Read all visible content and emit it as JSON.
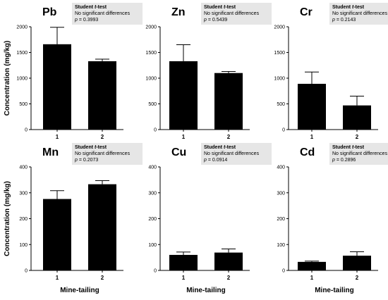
{
  "chart_data": [
    {
      "type": "bar",
      "element": "Pb",
      "test": {
        "title": "Student t-test",
        "result": "No significant differences",
        "p_label": "p",
        "p_value": "= 0.3993"
      },
      "categories": [
        "1",
        "2"
      ],
      "values": [
        1660,
        1330
      ],
      "errors": [
        330,
        40
      ],
      "ylim": [
        0,
        2000
      ],
      "yticks": [
        0,
        500,
        1000,
        1500,
        2000
      ],
      "ylabel": "Concentration (mg/kg)",
      "xlabel": ""
    },
    {
      "type": "bar",
      "element": "Zn",
      "test": {
        "title": "Student t-test",
        "result": "No significant differences",
        "p_label": "p",
        "p_value": "= 0.5439"
      },
      "categories": [
        "1",
        "2"
      ],
      "values": [
        1330,
        1100
      ],
      "errors": [
        320,
        30
      ],
      "ylim": [
        0,
        2000
      ],
      "yticks": [
        0,
        500,
        1000,
        1500,
        2000
      ],
      "ylabel": "",
      "xlabel": ""
    },
    {
      "type": "bar",
      "element": "Cr",
      "test": {
        "title": "Student t-test",
        "result": "No significant differences",
        "p_label": "p",
        "p_value": "= 0.2143"
      },
      "categories": [
        "1",
        "2"
      ],
      "values": [
        890,
        470
      ],
      "errors": [
        230,
        180
      ],
      "ylim": [
        0,
        2000
      ],
      "yticks": [
        0,
        500,
        1000,
        1500,
        2000
      ],
      "ylabel": "",
      "xlabel": ""
    },
    {
      "type": "bar",
      "element": "Mn",
      "test": {
        "title": "Student t-test",
        "result": "No significant differences",
        "p_label": "p",
        "p_value": "= 0.2073"
      },
      "categories": [
        "1",
        "2"
      ],
      "values": [
        276,
        333
      ],
      "errors": [
        32,
        14
      ],
      "ylim": [
        0,
        400
      ],
      "yticks": [
        0,
        100,
        200,
        300,
        400
      ],
      "ylabel": "Concentration (mg/kg)",
      "xlabel": "Mine-tailing"
    },
    {
      "type": "bar",
      "element": "Cu",
      "test": {
        "title": "Student t-test",
        "result": "No significant differences",
        "p_label": "p",
        "p_value": "= 0.0914"
      },
      "categories": [
        "1",
        "2"
      ],
      "values": [
        60,
        69
      ],
      "errors": [
        11,
        14
      ],
      "ylim": [
        0,
        400
      ],
      "yticks": [
        0,
        100,
        200,
        300,
        400
      ],
      "ylabel": "",
      "xlabel": "Mine-tailing"
    },
    {
      "type": "bar",
      "element": "Cd",
      "test": {
        "title": "Student t-test",
        "result": "No significant differences",
        "p_label": "p",
        "p_value": "= 0.2896"
      },
      "categories": [
        "1",
        "2"
      ],
      "values": [
        33,
        57
      ],
      "errors": [
        3,
        15
      ],
      "ylim": [
        0,
        400
      ],
      "yticks": [
        0,
        100,
        200,
        300,
        400
      ],
      "ylabel": "",
      "xlabel": "Mine-tailing"
    }
  ],
  "style": {
    "bar_color": "#000000",
    "box_color": "#e6e6e6",
    "grid": false
  }
}
